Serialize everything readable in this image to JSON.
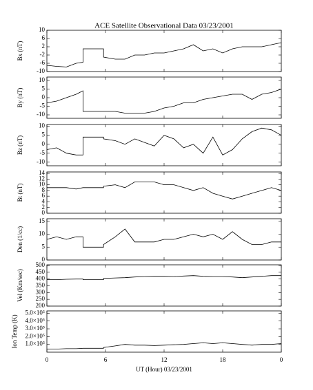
{
  "title": "ACE Satellite Observational Data   03/23/2001",
  "xlabel": "UT (Hour)  03/23/2001",
  "xlim": [
    0,
    24
  ],
  "xticks": [
    0,
    6,
    12,
    18,
    {
      "value": 24,
      "label": "0"
    }
  ],
  "x": [
    0,
    1,
    2,
    3,
    3.7,
    3.7,
    5.8,
    5.8,
    7,
    8,
    9,
    10,
    11,
    12,
    13,
    14,
    15,
    16,
    17,
    18,
    19,
    20,
    21,
    22,
    23,
    24
  ],
  "chart_data": [
    {
      "type": "line",
      "ylabel": "Bx (nT)",
      "ylim": [
        -10,
        10
      ],
      "yticks": [
        10,
        6,
        2,
        -2,
        -6,
        -10
      ],
      "color": "#000000",
      "values": [
        -7,
        -7.5,
        -7.8,
        -6,
        -5.5,
        1,
        1,
        -3,
        -4,
        -4,
        -2,
        -2,
        -1,
        -1,
        0,
        1,
        3,
        0,
        1,
        -1,
        1,
        2,
        2,
        2,
        3,
        4
      ]
    },
    {
      "type": "line",
      "ylabel": "By (nT)",
      "ylim": [
        -12,
        12
      ],
      "yticks": [
        10,
        5,
        0,
        -5,
        -10
      ],
      "color": "#000000",
      "values": [
        -3,
        -2,
        0,
        2,
        4,
        -8,
        -8,
        -8,
        -8,
        -9,
        -9,
        -9,
        -8,
        -6,
        -5,
        -3,
        -3,
        -1,
        0,
        1,
        2,
        2,
        -1,
        2,
        3,
        5
      ]
    },
    {
      "type": "line",
      "ylabel": "Bz (nT)",
      "ylim": [
        -12,
        11
      ],
      "yticks": [
        10,
        5,
        0,
        -5,
        -10
      ],
      "color": "#000000",
      "values": [
        -3,
        -2,
        -5,
        -6,
        -6,
        4,
        4,
        3,
        2,
        0,
        3,
        1,
        -1,
        5,
        3,
        -2,
        0,
        -5,
        4,
        -6,
        -3,
        3,
        7,
        9,
        8,
        5
      ]
    },
    {
      "type": "line",
      "ylabel": "Bt (nT)",
      "ylim": [
        0,
        14.5
      ],
      "yticks": [
        14,
        12,
        10,
        8,
        6,
        4,
        2,
        0
      ],
      "color": "#000000",
      "values": [
        9,
        9,
        9,
        8.5,
        9,
        9,
        9,
        9.5,
        10,
        9,
        11,
        11,
        11,
        10,
        10,
        9,
        8,
        9,
        7,
        6,
        5,
        6,
        7,
        8,
        9,
        8
      ]
    },
    {
      "type": "line",
      "ylabel": "Den (1/cc)",
      "ylim": [
        0,
        16
      ],
      "yticks": [
        15,
        10,
        5,
        0
      ],
      "color": "#000000",
      "values": [
        8,
        9,
        8,
        9,
        9,
        5,
        5,
        6,
        9,
        12,
        7,
        7,
        7,
        8,
        8,
        9,
        10,
        9,
        10,
        8,
        11,
        8,
        6,
        6,
        7,
        7
      ]
    },
    {
      "type": "line",
      "ylabel": "Vel (Km/sec)",
      "ylim": [
        200,
        505
      ],
      "yticks": [
        500,
        450,
        400,
        350,
        300,
        250,
        200
      ],
      "color": "#000000",
      "values": [
        395,
        395,
        398,
        400,
        400,
        395,
        395,
        405,
        408,
        410,
        415,
        418,
        420,
        420,
        418,
        422,
        425,
        420,
        418,
        418,
        415,
        410,
        415,
        420,
        425,
        425
      ]
    },
    {
      "type": "line",
      "ylabel": "Ion Temp (K)",
      "ylim": [
        0,
        530000
      ],
      "yticks": [
        {
          "value": 500000,
          "label": "5.0×10⁵"
        },
        {
          "value": 400000,
          "label": "4.0×10⁵"
        },
        {
          "value": 300000,
          "label": "3.0×10⁵"
        },
        {
          "value": 200000,
          "label": "2.0×10⁵"
        },
        {
          "value": 100000,
          "label": "1.0×10⁵"
        }
      ],
      "color": "#000000",
      "values": [
        40000,
        40000,
        45000,
        45000,
        50000,
        50000,
        50000,
        60000,
        80000,
        100000,
        90000,
        90000,
        85000,
        90000,
        95000,
        100000,
        110000,
        120000,
        110000,
        120000,
        110000,
        100000,
        90000,
        100000,
        100000,
        110000
      ]
    }
  ]
}
